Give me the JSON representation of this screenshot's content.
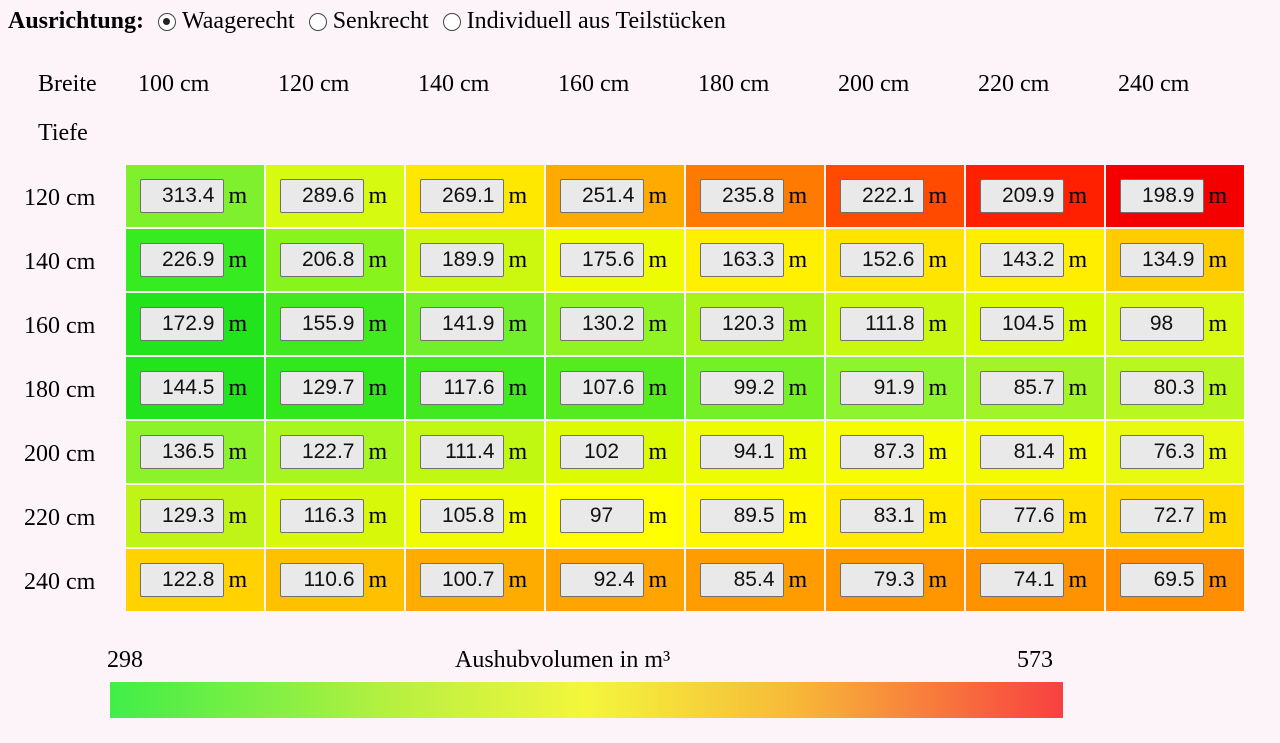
{
  "orientation": {
    "label": "Ausrichtung:",
    "options": [
      {
        "label": "Waagerecht",
        "checked": true
      },
      {
        "label": "Senkrecht",
        "checked": false
      },
      {
        "label": "Individuell aus Teilstücken",
        "checked": false
      }
    ]
  },
  "table": {
    "width_label": "Breite",
    "depth_label": "Tiefe",
    "unit": "m",
    "widths": [
      "100 cm",
      "120 cm",
      "140 cm",
      "160 cm",
      "180 cm",
      "200 cm",
      "220 cm",
      "240 cm"
    ],
    "depths": [
      "120 cm",
      "140 cm",
      "160 cm",
      "180 cm",
      "200 cm",
      "220 cm",
      "240 cm"
    ],
    "values": [
      [
        "313.4",
        "289.6",
        "269.1",
        "251.4",
        "235.8",
        "222.1",
        "209.9",
        "198.9"
      ],
      [
        "226.9",
        "206.8",
        "189.9",
        "175.6",
        "163.3",
        "152.6",
        "143.2",
        "134.9"
      ],
      [
        "172.9",
        "155.9",
        "141.9",
        "130.2",
        "120.3",
        "111.8",
        "104.5",
        "98"
      ],
      [
        "144.5",
        "129.7",
        "117.6",
        "107.6",
        "99.2",
        "91.9",
        "85.7",
        "80.3"
      ],
      [
        "136.5",
        "122.7",
        "111.4",
        "102",
        "94.1",
        "87.3",
        "81.4",
        "76.3"
      ],
      [
        "129.3",
        "116.3",
        "105.8",
        "97",
        "89.5",
        "83.1",
        "77.6",
        "72.7"
      ],
      [
        "122.8",
        "110.6",
        "100.7",
        "92.4",
        "85.4",
        "79.3",
        "74.1",
        "69.5"
      ]
    ],
    "colors": [
      [
        "#7ff02e",
        "#d6fa10",
        "#ffe800",
        "#ffaa00",
        "#ff7a00",
        "#ff4a00",
        "#ff2000",
        "#f40000"
      ],
      [
        "#36ec20",
        "#88f41e",
        "#ccf810",
        "#eefc00",
        "#fff000",
        "#ffe400",
        "#ffee00",
        "#ffcc00"
      ],
      [
        "#22e41c",
        "#40ea1e",
        "#70f02a",
        "#90f424",
        "#a8f418",
        "#c8f810",
        "#dafa00",
        "#d8fa10"
      ],
      [
        "#22e41c",
        "#30e81c",
        "#40ea1e",
        "#54ec1e",
        "#74f026",
        "#8ef42e",
        "#a2f428",
        "#b8f820"
      ],
      [
        "#8cf22a",
        "#a8f620",
        "#c0f812",
        "#dcfa00",
        "#eefc00",
        "#f8fc00",
        "#f4fa00",
        "#e8fa10"
      ],
      [
        "#c0f416",
        "#d8f80a",
        "#f2fc00",
        "#ffff00",
        "#fff800",
        "#ffea00",
        "#ffe000",
        "#ffd800"
      ],
      [
        "#ffd200",
        "#ffc000",
        "#ffac00",
        "#ffa400",
        "#ff9c00",
        "#ff9600",
        "#ff9200",
        "#ff8e00"
      ]
    ]
  },
  "scale": {
    "min": "298",
    "max": "573",
    "title": "Aushubvolumen in m³"
  }
}
